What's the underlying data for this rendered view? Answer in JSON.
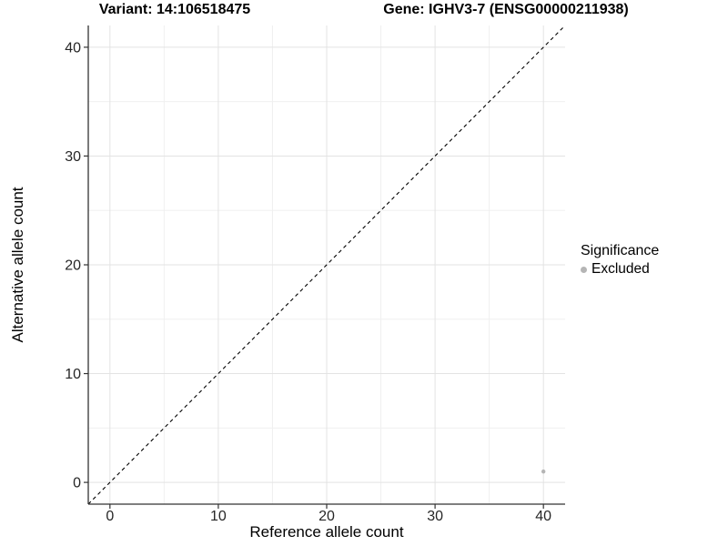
{
  "chart_data": {
    "type": "scatter",
    "title_left": "Variant: 14:106518475",
    "title_right": "Gene: IGHV3-7 (ENSG00000211938)",
    "xlabel": "Reference allele count",
    "ylabel": "Alternative allele count",
    "xlim": [
      -2,
      42
    ],
    "ylim": [
      -2,
      42
    ],
    "x_ticks": [
      0,
      10,
      20,
      30,
      40
    ],
    "y_ticks": [
      0,
      10,
      20,
      30,
      40
    ],
    "x_minor_ticks": [
      5,
      15,
      25,
      35
    ],
    "y_minor_ticks": [
      5,
      15,
      25,
      35
    ],
    "grid": true,
    "legend_position": "right",
    "legend_title": "Significance",
    "series": [
      {
        "name": "Excluded",
        "color": "#b5b5b5",
        "marker_radius": 2.2,
        "points": [
          [
            40,
            1
          ]
        ]
      }
    ],
    "reference_line": {
      "equation": "y = x",
      "style": "dashed",
      "color": "#000000"
    },
    "colors": {
      "grid_major": "#e3e3e3",
      "grid_minor": "#f0f0f0",
      "axis_line": "#333333",
      "tick_label": "#262626"
    }
  }
}
